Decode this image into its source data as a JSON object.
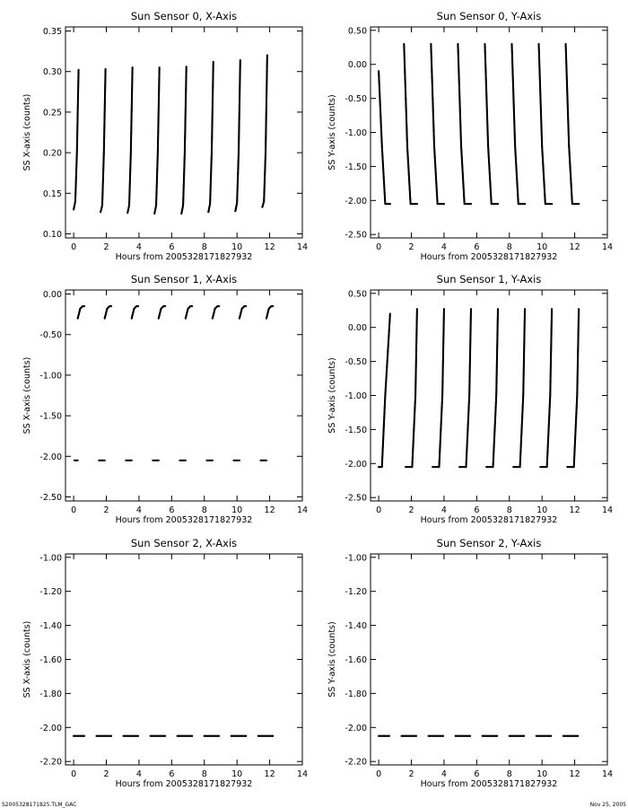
{
  "footer": {
    "left_text": "S2005328171825.TLM_GAC",
    "right_text": "Nov 25, 2005"
  },
  "chart_data": [
    {
      "type": "scatter",
      "title": "Sun Sensor 0, X-Axis",
      "xlabel": "Hours from 2005328171827932",
      "ylabel": "SS X-axis (counts)",
      "xlim": [
        -0.5,
        14
      ],
      "ylim": [
        0.095,
        0.355
      ],
      "xticks": [
        0,
        2,
        4,
        6,
        8,
        10,
        12,
        14
      ],
      "yticks": [
        0.1,
        0.15,
        0.2,
        0.25,
        0.3,
        0.35
      ],
      "ytick_labels": [
        "0.10",
        "0.15",
        "0.20",
        "0.25",
        "0.30",
        "0.35"
      ],
      "series": [
        {
          "x": [
            0.0,
            0.1,
            0.2,
            0.3
          ],
          "y": [
            0.13,
            0.14,
            0.2,
            0.302
          ]
        },
        {
          "x": [
            1.65,
            1.75,
            1.85,
            1.95
          ],
          "y": [
            0.127,
            0.135,
            0.2,
            0.303
          ]
        },
        {
          "x": [
            3.3,
            3.4,
            3.5,
            3.6
          ],
          "y": [
            0.126,
            0.135,
            0.2,
            0.305
          ]
        },
        {
          "x": [
            4.95,
            5.05,
            5.15,
            5.25
          ],
          "y": [
            0.125,
            0.135,
            0.2,
            0.305
          ]
        },
        {
          "x": [
            6.6,
            6.7,
            6.8,
            6.9
          ],
          "y": [
            0.125,
            0.135,
            0.2,
            0.306
          ]
        },
        {
          "x": [
            8.25,
            8.35,
            8.45,
            8.55
          ],
          "y": [
            0.127,
            0.137,
            0.2,
            0.312
          ]
        },
        {
          "x": [
            9.9,
            10.0,
            10.1,
            10.2
          ],
          "y": [
            0.128,
            0.138,
            0.2,
            0.314
          ]
        },
        {
          "x": [
            11.55,
            11.65,
            11.75,
            11.85
          ],
          "y": [
            0.133,
            0.14,
            0.2,
            0.32
          ]
        }
      ]
    },
    {
      "type": "scatter",
      "title": "Sun Sensor 0, Y-Axis",
      "xlabel": "Hours from 2005328171827932",
      "ylabel": "SS Y-axis (counts)",
      "xlim": [
        -0.5,
        14
      ],
      "ylim": [
        -2.55,
        0.55
      ],
      "xticks": [
        0,
        2,
        4,
        6,
        8,
        10,
        12,
        14
      ],
      "yticks": [
        -2.5,
        -2.0,
        -1.5,
        -1.0,
        -0.5,
        0.0,
        0.5
      ],
      "ytick_labels": [
        "-2.50",
        "-2.00",
        "-1.50",
        "-1.00",
        "-0.50",
        "0.00",
        "0.50"
      ],
      "series": [
        {
          "x": [
            0.0,
            0.2,
            0.4,
            0.7
          ],
          "y": [
            -0.1,
            -1.2,
            -2.05,
            -2.05
          ]
        },
        {
          "x": [
            1.55,
            1.75,
            1.95,
            2.35
          ],
          "y": [
            0.3,
            -1.2,
            -2.05,
            -2.05
          ]
        },
        {
          "x": [
            3.2,
            3.4,
            3.6,
            4.0
          ],
          "y": [
            0.3,
            -1.2,
            -2.05,
            -2.05
          ]
        },
        {
          "x": [
            4.85,
            5.05,
            5.25,
            5.65
          ],
          "y": [
            0.3,
            -1.2,
            -2.05,
            -2.05
          ]
        },
        {
          "x": [
            6.5,
            6.7,
            6.9,
            7.3
          ],
          "y": [
            0.3,
            -1.2,
            -2.05,
            -2.05
          ]
        },
        {
          "x": [
            8.15,
            8.35,
            8.55,
            8.95
          ],
          "y": [
            0.3,
            -1.2,
            -2.05,
            -2.05
          ]
        },
        {
          "x": [
            9.8,
            10.0,
            10.2,
            10.6
          ],
          "y": [
            0.3,
            -1.2,
            -2.05,
            -2.05
          ]
        },
        {
          "x": [
            11.45,
            11.65,
            11.85,
            12.25
          ],
          "y": [
            0.3,
            -1.2,
            -2.05,
            -2.05
          ]
        }
      ]
    },
    {
      "type": "scatter",
      "title": "Sun Sensor 1, X-Axis",
      "xlabel": "Hours from 2005328171827932",
      "ylabel": "SS X-axis (counts)",
      "xlim": [
        -0.5,
        14
      ],
      "ylim": [
        -2.55,
        0.05
      ],
      "xticks": [
        0,
        2,
        4,
        6,
        8,
        10,
        12,
        14
      ],
      "yticks": [
        -2.5,
        -2.0,
        -1.5,
        -1.0,
        -0.5,
        0.0
      ],
      "ytick_labels": [
        "-2.50",
        "-2.00",
        "-1.50",
        "-1.00",
        "-0.50",
        "0.00"
      ],
      "series": [
        {
          "x": [
            0.25,
            0.4,
            0.55,
            0.65
          ],
          "y": [
            -0.3,
            -0.18,
            -0.15,
            -0.15
          ]
        },
        {
          "x": [
            1.9,
            2.05,
            2.2,
            2.3
          ],
          "y": [
            -0.3,
            -0.18,
            -0.15,
            -0.15
          ]
        },
        {
          "x": [
            3.55,
            3.7,
            3.85,
            3.95
          ],
          "y": [
            -0.3,
            -0.18,
            -0.15,
            -0.15
          ]
        },
        {
          "x": [
            5.2,
            5.35,
            5.5,
            5.6
          ],
          "y": [
            -0.3,
            -0.18,
            -0.15,
            -0.15
          ]
        },
        {
          "x": [
            6.85,
            7.0,
            7.15,
            7.25
          ],
          "y": [
            -0.3,
            -0.18,
            -0.15,
            -0.15
          ]
        },
        {
          "x": [
            8.5,
            8.65,
            8.8,
            8.9
          ],
          "y": [
            -0.3,
            -0.18,
            -0.15,
            -0.15
          ]
        },
        {
          "x": [
            10.15,
            10.3,
            10.45,
            10.55
          ],
          "y": [
            -0.3,
            -0.18,
            -0.15,
            -0.15
          ]
        },
        {
          "x": [
            11.8,
            11.95,
            12.1,
            12.2
          ],
          "y": [
            -0.3,
            -0.18,
            -0.15,
            -0.15
          ]
        },
        {
          "x": [
            0.05,
            0.25
          ],
          "y": [
            -2.05,
            -2.05
          ]
        },
        {
          "x": [
            1.55,
            1.9
          ],
          "y": [
            -2.05,
            -2.05
          ]
        },
        {
          "x": [
            3.2,
            3.55
          ],
          "y": [
            -2.05,
            -2.05
          ]
        },
        {
          "x": [
            4.85,
            5.2
          ],
          "y": [
            -2.05,
            -2.05
          ]
        },
        {
          "x": [
            6.5,
            6.85
          ],
          "y": [
            -2.05,
            -2.05
          ]
        },
        {
          "x": [
            8.15,
            8.5
          ],
          "y": [
            -2.05,
            -2.05
          ]
        },
        {
          "x": [
            9.8,
            10.15
          ],
          "y": [
            -2.05,
            -2.05
          ]
        },
        {
          "x": [
            11.45,
            11.8
          ],
          "y": [
            -2.05,
            -2.05
          ]
        }
      ]
    },
    {
      "type": "scatter",
      "title": "Sun Sensor 1, Y-Axis",
      "xlabel": "Hours from 2005328171827932",
      "ylabel": "SS Y-axis (counts)",
      "xlim": [
        -0.5,
        14
      ],
      "ylim": [
        -2.55,
        0.55
      ],
      "xticks": [
        0,
        2,
        4,
        6,
        8,
        10,
        12,
        14
      ],
      "yticks": [
        -2.5,
        -2.0,
        -1.5,
        -1.0,
        -0.5,
        0.0,
        0.5
      ],
      "ytick_labels": [
        "-2.50",
        "-2.00",
        "-1.50",
        "-1.00",
        "-0.50",
        "0.00",
        "0.50"
      ],
      "series": [
        {
          "x": [
            0.0,
            0.2,
            0.4,
            0.7
          ],
          "y": [
            -2.05,
            -2.05,
            -1.0,
            0.2
          ]
        },
        {
          "x": [
            1.65,
            2.05,
            2.25,
            2.35
          ],
          "y": [
            -2.05,
            -2.05,
            -1.0,
            0.27
          ]
        },
        {
          "x": [
            3.3,
            3.7,
            3.9,
            4.0
          ],
          "y": [
            -2.05,
            -2.05,
            -1.0,
            0.27
          ]
        },
        {
          "x": [
            4.95,
            5.35,
            5.55,
            5.65
          ],
          "y": [
            -2.05,
            -2.05,
            -1.0,
            0.27
          ]
        },
        {
          "x": [
            6.6,
            7.0,
            7.2,
            7.3
          ],
          "y": [
            -2.05,
            -2.05,
            -1.0,
            0.27
          ]
        },
        {
          "x": [
            8.25,
            8.65,
            8.85,
            8.95
          ],
          "y": [
            -2.05,
            -2.05,
            -1.0,
            0.27
          ]
        },
        {
          "x": [
            9.9,
            10.3,
            10.5,
            10.6
          ],
          "y": [
            -2.05,
            -2.05,
            -1.0,
            0.27
          ]
        },
        {
          "x": [
            11.55,
            11.95,
            12.15,
            12.25
          ],
          "y": [
            -2.05,
            -2.05,
            -1.0,
            0.27
          ]
        }
      ]
    },
    {
      "type": "scatter",
      "title": "Sun Sensor 2, X-Axis",
      "xlabel": "Hours from 2005328171827932",
      "ylabel": "SS X-axis (counts)",
      "xlim": [
        -0.5,
        14
      ],
      "ylim": [
        -2.22,
        -0.98
      ],
      "xticks": [
        0,
        2,
        4,
        6,
        8,
        10,
        12,
        14
      ],
      "yticks": [
        -2.2,
        -2.0,
        -1.8,
        -1.6,
        -1.4,
        -1.2,
        -1.0
      ],
      "ytick_labels": [
        "-2.20",
        "-2.00",
        "-1.80",
        "-1.60",
        "-1.40",
        "-1.20",
        "-1.00"
      ],
      "series": [
        {
          "x": [
            0.0,
            0.65
          ],
          "y": [
            -2.05,
            -2.05
          ]
        },
        {
          "x": [
            1.4,
            2.3
          ],
          "y": [
            -2.05,
            -2.05
          ]
        },
        {
          "x": [
            3.05,
            3.95
          ],
          "y": [
            -2.05,
            -2.05
          ]
        },
        {
          "x": [
            4.7,
            5.6
          ],
          "y": [
            -2.05,
            -2.05
          ]
        },
        {
          "x": [
            6.35,
            7.25
          ],
          "y": [
            -2.05,
            -2.05
          ]
        },
        {
          "x": [
            8.0,
            8.9
          ],
          "y": [
            -2.05,
            -2.05
          ]
        },
        {
          "x": [
            9.65,
            10.55
          ],
          "y": [
            -2.05,
            -2.05
          ]
        },
        {
          "x": [
            11.3,
            12.2
          ],
          "y": [
            -2.05,
            -2.05
          ]
        }
      ]
    },
    {
      "type": "scatter",
      "title": "Sun Sensor 2, Y-Axis",
      "xlabel": "Hours from 2005328171827932",
      "ylabel": "SS Y-axis (counts)",
      "xlim": [
        -0.5,
        14
      ],
      "ylim": [
        -2.22,
        -0.98
      ],
      "xticks": [
        0,
        2,
        4,
        6,
        8,
        10,
        12,
        14
      ],
      "yticks": [
        -2.2,
        -2.0,
        -1.8,
        -1.6,
        -1.4,
        -1.2,
        -1.0
      ],
      "ytick_labels": [
        "-2.20",
        "-2.00",
        "-1.80",
        "-1.60",
        "-1.40",
        "-1.20",
        "-1.00"
      ],
      "series": [
        {
          "x": [
            0.0,
            0.65
          ],
          "y": [
            -2.05,
            -2.05
          ]
        },
        {
          "x": [
            1.4,
            2.3
          ],
          "y": [
            -2.05,
            -2.05
          ]
        },
        {
          "x": [
            3.05,
            3.95
          ],
          "y": [
            -2.05,
            -2.05
          ]
        },
        {
          "x": [
            4.7,
            5.6
          ],
          "y": [
            -2.05,
            -2.05
          ]
        },
        {
          "x": [
            6.35,
            7.25
          ],
          "y": [
            -2.05,
            -2.05
          ]
        },
        {
          "x": [
            8.0,
            8.9
          ],
          "y": [
            -2.05,
            -2.05
          ]
        },
        {
          "x": [
            9.65,
            10.55
          ],
          "y": [
            -2.05,
            -2.05
          ]
        },
        {
          "x": [
            11.3,
            12.2
          ],
          "y": [
            -2.05,
            -2.05
          ]
        }
      ]
    }
  ]
}
